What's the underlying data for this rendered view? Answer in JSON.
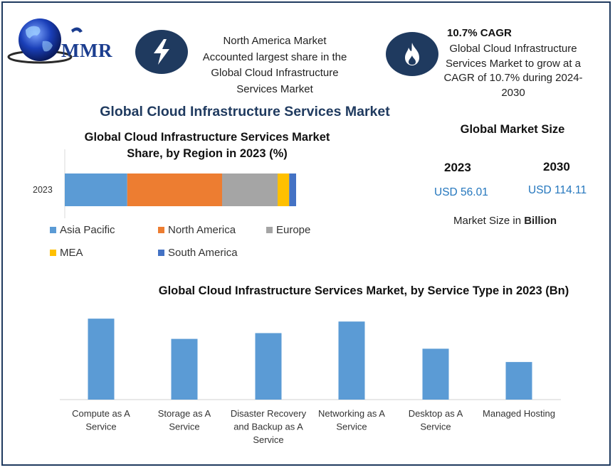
{
  "logo": {
    "text": "MMR"
  },
  "info_left": {
    "lines": [
      "North America Market",
      "Accounted largest share in the",
      "Global Cloud Infrastructure",
      "Services Market"
    ],
    "icon": "lightning-bolt-icon"
  },
  "info_right": {
    "title": "10.7% CAGR",
    "lines": [
      "Global Cloud Infrastructure",
      "Services Market to grow at a",
      "CAGR of 10.7% during 2024-",
      "2030"
    ],
    "icon": "flame-icon"
  },
  "main_title": "Global Cloud Infrastructure Services Market",
  "market_size": {
    "title": "Global Market Size",
    "year_2023": "2023",
    "year_2030": "2030",
    "value_2023": "USD 56.01",
    "value_2030": "USD 114.11",
    "note_prefix": "Market Size in ",
    "note_unit": "Billion"
  },
  "colors": {
    "navy": "#1f3a5f",
    "asia_pacific": "#5b9bd5",
    "north_america": "#ed7d31",
    "europe": "#a5a5a5",
    "mea": "#ffc000",
    "south_america": "#4472c4",
    "service_bar": "#5b9bd5",
    "usd_text": "#2376bd"
  },
  "chart_data": [
    {
      "type": "bar",
      "orientation": "horizontal-stacked",
      "title_lines": [
        "Global Cloud Infrastructure Services Market",
        "Share, by Region in 2023 (%)"
      ],
      "categories": [
        "2023"
      ],
      "series": [
        {
          "name": "Asia Pacific",
          "values": [
            27
          ]
        },
        {
          "name": "North America",
          "values": [
            41
          ]
        },
        {
          "name": "Europe",
          "values": [
            24
          ]
        },
        {
          "name": "MEA",
          "values": [
            5
          ]
        },
        {
          "name": "South America",
          "values": [
            3
          ]
        }
      ],
      "legend_rows": [
        [
          "Asia Pacific",
          "North America",
          "Europe"
        ],
        [
          "MEA",
          "South America"
        ]
      ],
      "legend_position": "bottom"
    },
    {
      "type": "bar",
      "title": "Global Cloud Infrastructure Services Market, by Service Type in 2023 (Bn)",
      "categories": [
        [
          "Compute as A",
          "Service"
        ],
        [
          "Storage as A",
          "Service"
        ],
        [
          "Disaster Recovery",
          "and Backup as A",
          "Service"
        ],
        [
          "Networking as A",
          "Service"
        ],
        [
          "Desktop as A",
          "Service"
        ],
        [
          "Managed Hosting"
        ]
      ],
      "values": [
        14.0,
        10.5,
        11.5,
        13.5,
        8.8,
        6.5
      ],
      "ylim": [
        0,
        15
      ]
    }
  ]
}
